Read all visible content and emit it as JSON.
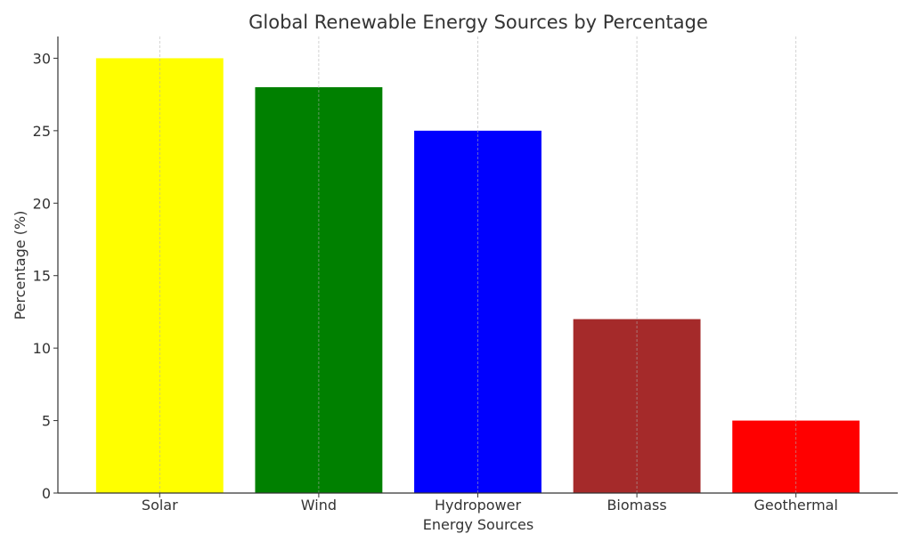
{
  "chart_data": {
    "type": "bar",
    "title": "Global Renewable Energy Sources by Percentage",
    "xlabel": "Energy Sources",
    "ylabel": "Percentage (%)",
    "categories": [
      "Solar",
      "Wind",
      "Hydropower",
      "Biomass",
      "Geothermal"
    ],
    "values": [
      30,
      28,
      25,
      12,
      5
    ],
    "colors": [
      "#ffff00",
      "#008000",
      "#0000ff",
      "#a52a2a",
      "#ff0000"
    ],
    "ylim": [
      0,
      31.5
    ],
    "xlim": [
      -0.64,
      4.64
    ],
    "yticks": [
      0,
      5,
      10,
      15,
      20,
      25,
      30
    ],
    "grid": "x-axis dashed",
    "legend": "none"
  }
}
